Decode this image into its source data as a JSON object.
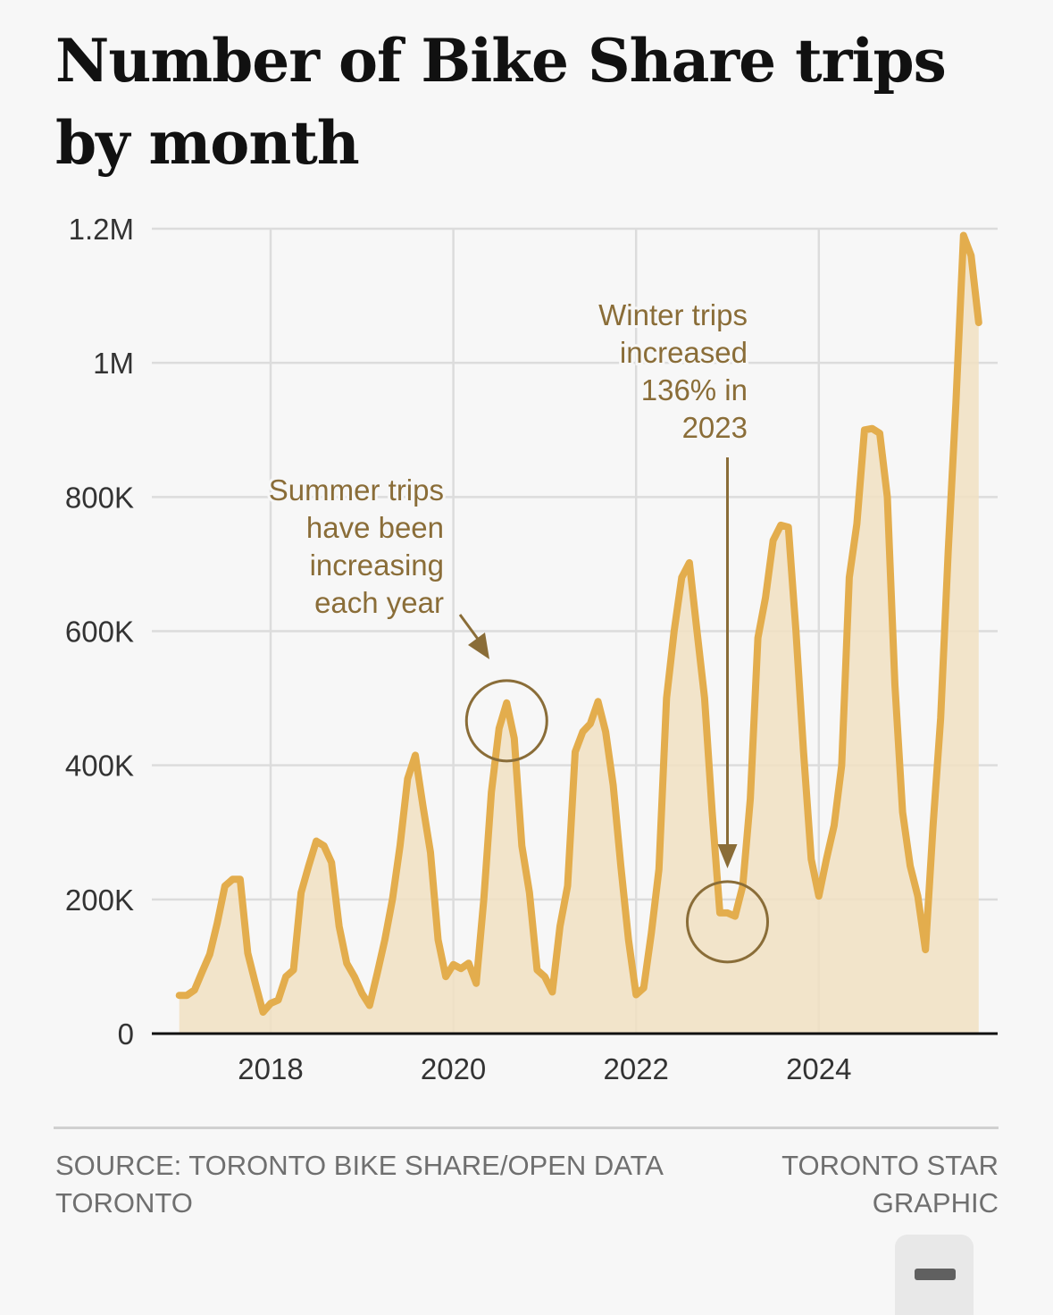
{
  "title": "Number of Bike Share trips by month",
  "footer": {
    "source": "SOURCE: TORONTO BIKE SHARE/OPEN DATA TORONTO",
    "credit": "TORONTO STAR GRAPHIC"
  },
  "controls": {
    "collapse_icon": "minus-icon"
  },
  "colors": {
    "line": "#e3ad4d",
    "area": "#f1e0c2",
    "annotation": "#8a6d38",
    "grid": "#dcdcdc",
    "axis": "#111111",
    "tick_text": "#333333"
  },
  "chart_data": {
    "type": "area",
    "title": "Number of Bike Share trips by month",
    "xlabel": "",
    "ylabel": "",
    "x_start": "2017-01",
    "x_end": "2025-09",
    "x_unit": "month",
    "xlim": [
      2017.0,
      2025.95
    ],
    "ylim": [
      0,
      1200000
    ],
    "grid": true,
    "y_ticks": [
      0,
      200000,
      400000,
      600000,
      800000,
      1000000,
      1200000
    ],
    "y_tick_labels": [
      "0",
      "200K",
      "400K",
      "600K",
      "800K",
      "1M",
      "1.2M"
    ],
    "x_ticks": [
      2018,
      2020,
      2022,
      2024
    ],
    "x_tick_labels": [
      "2018",
      "2020",
      "2022",
      "2024"
    ],
    "series": [
      {
        "name": "Bike Share trips",
        "values": [
          57000,
          57000,
          65000,
          92000,
          118000,
          165000,
          220000,
          230000,
          230000,
          120000,
          75000,
          32000,
          45000,
          50000,
          85000,
          95000,
          210000,
          250000,
          287000,
          280000,
          255000,
          160000,
          105000,
          85000,
          60000,
          42000,
          90000,
          140000,
          200000,
          280000,
          380000,
          415000,
          340000,
          270000,
          140000,
          85000,
          103000,
          97000,
          105000,
          75000,
          200000,
          360000,
          455000,
          493000,
          440000,
          280000,
          210000,
          95000,
          85000,
          62000,
          160000,
          220000,
          420000,
          450000,
          462000,
          495000,
          450000,
          370000,
          250000,
          140000,
          58000,
          68000,
          150000,
          245000,
          500000,
          600000,
          680000,
          702000,
          600000,
          500000,
          330000,
          180000,
          180000,
          175000,
          220000,
          350000,
          590000,
          650000,
          735000,
          758000,
          755000,
          600000,
          420000,
          260000,
          205000,
          260000,
          310000,
          400000,
          680000,
          760000,
          900000,
          902000,
          895000,
          800000,
          520000,
          330000,
          250000,
          205000,
          125000,
          310000,
          470000,
          720000,
          940000,
          1190000,
          1160000,
          1060000
        ]
      }
    ],
    "annotations": [
      {
        "text_lines": [
          "Summer trips",
          "have been",
          "increasing",
          "each year"
        ],
        "target_month": "2020-08",
        "type": "circle-with-arrow"
      },
      {
        "text_lines": [
          "Winter trips",
          "increased",
          "136% in",
          "2023"
        ],
        "target_month": "2023-01",
        "type": "circle-with-arrow"
      }
    ]
  }
}
